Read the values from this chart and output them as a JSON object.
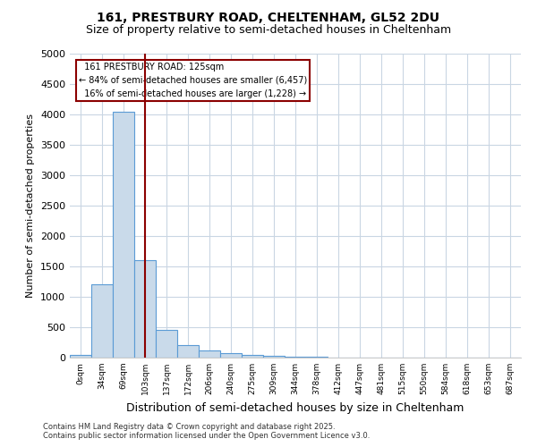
{
  "title_line1": "161, PRESTBURY ROAD, CHELTENHAM, GL52 2DU",
  "title_line2": "Size of property relative to semi-detached houses in Cheltenham",
  "xlabel": "Distribution of semi-detached houses by size in Cheltenham",
  "ylabel": "Number of semi-detached properties",
  "footer_line1": "Contains HM Land Registry data © Crown copyright and database right 2025.",
  "footer_line2": "Contains public sector information licensed under the Open Government Licence v3.0.",
  "bin_labels": [
    "0sqm",
    "34sqm",
    "69sqm",
    "103sqm",
    "137sqm",
    "172sqm",
    "206sqm",
    "240sqm",
    "275sqm",
    "309sqm",
    "344sqm",
    "378sqm",
    "412sqm",
    "447sqm",
    "481sqm",
    "515sqm",
    "550sqm",
    "584sqm",
    "618sqm",
    "653sqm",
    "687sqm"
  ],
  "bar_heights": [
    50,
    1200,
    4050,
    1600,
    450,
    200,
    125,
    75,
    50,
    30,
    15,
    8,
    5,
    2,
    1,
    1,
    0,
    0,
    0,
    0,
    0
  ],
  "bar_color": "#c9daea",
  "bar_edge_color": "#5b9bd5",
  "grid_color": "#c9d6e3",
  "background_color": "#ffffff",
  "property_size": 125,
  "property_bin_index": 3,
  "property_label": "161 PRESTBURY ROAD: 125sqm",
  "pct_smaller": 84,
  "count_smaller": 6457,
  "pct_larger": 16,
  "count_larger": 1228,
  "vline_color": "#8b0000",
  "annotation_box_color": "#8b0000",
  "ylim": [
    0,
    5000
  ],
  "yticks": [
    0,
    500,
    1000,
    1500,
    2000,
    2500,
    3000,
    3500,
    4000,
    4500,
    5000
  ]
}
